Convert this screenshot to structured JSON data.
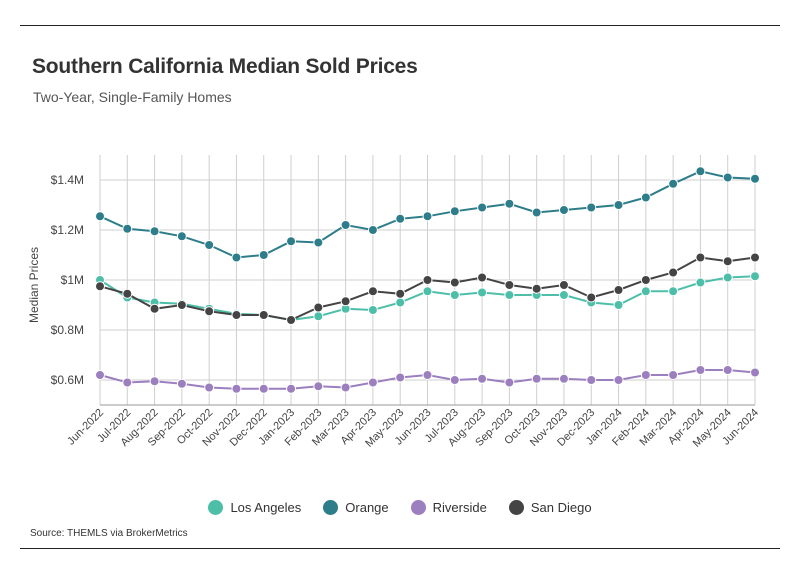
{
  "title": "Southern California Median Sold Prices",
  "subtitle": "Two-Year, Single-Family Homes",
  "source": "Source:  THEMLS via BrokerMetrics",
  "chart_data": {
    "type": "line",
    "title": "Southern California Median Sold Prices",
    "subtitle": "Two-Year, Single-Family Homes",
    "xlabel": "",
    "ylabel": "Median Prices",
    "ylim": [
      500000,
      1500000
    ],
    "yticks": [
      600000,
      800000,
      1000000,
      1200000,
      1400000
    ],
    "ytick_labels": [
      "$0.6M",
      "$0.8M",
      "$1M",
      "$1.2M",
      "$1.4M"
    ],
    "grid": "vertical and horizontal",
    "legend_position": "bottom",
    "categories": [
      "Jun-2022",
      "Jul-2022",
      "Aug-2022",
      "Sep-2022",
      "Oct-2022",
      "Nov-2022",
      "Dec-2022",
      "Jan-2023",
      "Feb-2023",
      "Mar-2023",
      "Apr-2023",
      "May-2023",
      "Jun-2023",
      "Jul-2023",
      "Aug-2023",
      "Sep-2023",
      "Oct-2023",
      "Nov-2023",
      "Dec-2023",
      "Jan-2024",
      "Feb-2024",
      "Mar-2024",
      "Apr-2024",
      "May-2024",
      "Jun-2024"
    ],
    "series": [
      {
        "name": "Los Angeles",
        "color": "#4dbfa8",
        "values": [
          1000000,
          930000,
          910000,
          905000,
          885000,
          865000,
          860000,
          840000,
          855000,
          885000,
          880000,
          910000,
          955000,
          940000,
          950000,
          940000,
          940000,
          940000,
          910000,
          900000,
          955000,
          955000,
          990000,
          1010000,
          1015000
        ]
      },
      {
        "name": "Orange",
        "color": "#2e7d8a",
        "values": [
          1255000,
          1205000,
          1195000,
          1175000,
          1140000,
          1090000,
          1100000,
          1155000,
          1150000,
          1220000,
          1200000,
          1245000,
          1255000,
          1275000,
          1290000,
          1305000,
          1270000,
          1280000,
          1290000,
          1300000,
          1330000,
          1385000,
          1435000,
          1410000,
          1405000
        ]
      },
      {
        "name": "Riverside",
        "color": "#9b7fbf",
        "values": [
          620000,
          590000,
          595000,
          585000,
          570000,
          565000,
          565000,
          565000,
          575000,
          570000,
          590000,
          610000,
          620000,
          600000,
          605000,
          590000,
          605000,
          605000,
          600000,
          600000,
          620000,
          620000,
          640000,
          640000,
          630000
        ]
      },
      {
        "name": "San Diego",
        "color": "#444444",
        "values": [
          975000,
          945000,
          885000,
          900000,
          875000,
          860000,
          860000,
          840000,
          890000,
          915000,
          955000,
          945000,
          1000000,
          990000,
          1010000,
          980000,
          965000,
          980000,
          930000,
          960000,
          1000000,
          1030000,
          1090000,
          1075000,
          1090000
        ]
      }
    ]
  }
}
